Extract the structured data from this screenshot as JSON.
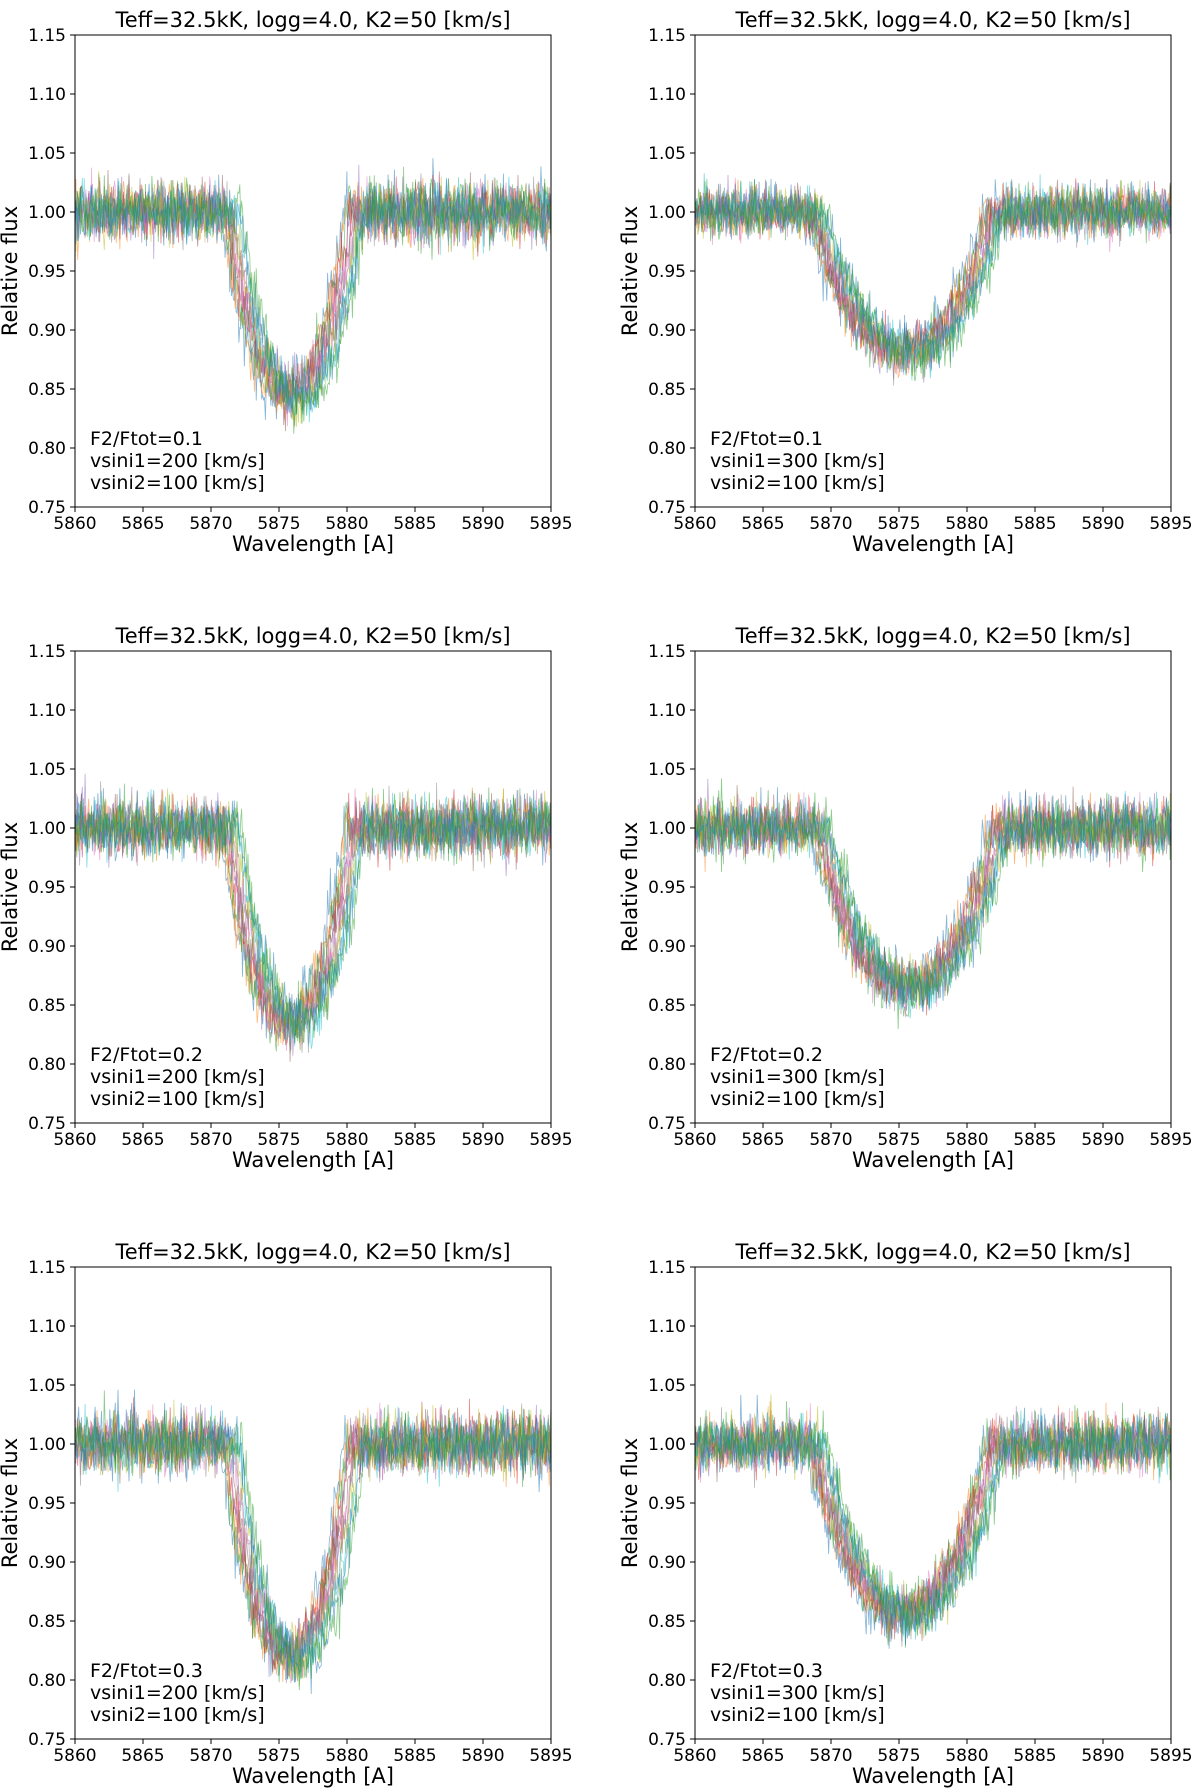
{
  "chart_data": [
    {
      "type": "line",
      "title": "Teff=32.5kK, logg=4.0, K2=50 [km/s]",
      "xlabel": "Wavelength [A]",
      "ylabel": "Relative flux",
      "xlim": [
        5860,
        5895
      ],
      "ylim": [
        0.75,
        1.15
      ],
      "xticks": [
        "5860",
        "5865",
        "5870",
        "5875",
        "5880",
        "5885",
        "5890",
        "5895"
      ],
      "yticks": [
        "0.75",
        "0.80",
        "0.85",
        "0.90",
        "0.95",
        "1.00",
        "1.05",
        "1.10",
        "1.15"
      ],
      "annotation": [
        "F2/Ftot=0.1",
        "vsini1=200 [km/s]",
        "vsini2=100 [km/s]"
      ],
      "grid": false,
      "line_profile": {
        "continuum": 1.0,
        "center": 5876.0,
        "min_flux": 0.845,
        "half_width": 4.5,
        "noise": 0.012
      },
      "series_count": 12
    },
    {
      "type": "line",
      "title": "Teff=32.5kK, logg=4.0, K2=50 [km/s]",
      "xlabel": "Wavelength [A]",
      "ylabel": "Relative flux",
      "xlim": [
        5860,
        5895
      ],
      "ylim": [
        0.75,
        1.15
      ],
      "xticks": [
        "5860",
        "5865",
        "5870",
        "5875",
        "5880",
        "5885",
        "5890",
        "5895"
      ],
      "yticks": [
        "0.75",
        "0.80",
        "0.85",
        "0.90",
        "0.95",
        "1.00",
        "1.05",
        "1.10",
        "1.15"
      ],
      "annotation": [
        "F2/Ftot=0.1",
        "vsini1=300 [km/s]",
        "vsini2=100 [km/s]"
      ],
      "grid": false,
      "line_profile": {
        "continuum": 1.0,
        "center": 5875.5,
        "min_flux": 0.88,
        "half_width": 6.5,
        "noise": 0.01
      },
      "series_count": 12
    },
    {
      "type": "line",
      "title": "Teff=32.5kK, logg=4.0, K2=50 [km/s]",
      "xlabel": "Wavelength [A]",
      "ylabel": "Relative flux",
      "xlim": [
        5860,
        5895
      ],
      "ylim": [
        0.75,
        1.15
      ],
      "xticks": [
        "5860",
        "5865",
        "5870",
        "5875",
        "5880",
        "5885",
        "5890",
        "5895"
      ],
      "yticks": [
        "0.75",
        "0.80",
        "0.85",
        "0.90",
        "0.95",
        "1.00",
        "1.05",
        "1.10",
        "1.15"
      ],
      "annotation": [
        "F2/Ftot=0.2",
        "vsini1=200 [km/s]",
        "vsini2=100 [km/s]"
      ],
      "grid": false,
      "line_profile": {
        "continuum": 1.0,
        "center": 5876.0,
        "min_flux": 0.835,
        "half_width": 4.5,
        "noise": 0.012
      },
      "series_count": 12
    },
    {
      "type": "line",
      "title": "Teff=32.5kK, logg=4.0, K2=50 [km/s]",
      "xlabel": "Wavelength [A]",
      "ylabel": "Relative flux",
      "xlim": [
        5860,
        5895
      ],
      "ylim": [
        0.75,
        1.15
      ],
      "xticks": [
        "5860",
        "5865",
        "5870",
        "5875",
        "5880",
        "5885",
        "5890",
        "5895"
      ],
      "yticks": [
        "0.75",
        "0.80",
        "0.85",
        "0.90",
        "0.95",
        "1.00",
        "1.05",
        "1.10",
        "1.15"
      ],
      "annotation": [
        "F2/Ftot=0.2",
        "vsini1=300 [km/s]",
        "vsini2=100 [km/s]"
      ],
      "grid": false,
      "line_profile": {
        "continuum": 1.0,
        "center": 5875.8,
        "min_flux": 0.865,
        "half_width": 6.5,
        "noise": 0.011
      },
      "series_count": 12
    },
    {
      "type": "line",
      "title": "Teff=32.5kK, logg=4.0, K2=50 [km/s]",
      "xlabel": "Wavelength [A]",
      "ylabel": "Relative flux",
      "xlim": [
        5860,
        5895
      ],
      "ylim": [
        0.75,
        1.15
      ],
      "xticks": [
        "5860",
        "5865",
        "5870",
        "5875",
        "5880",
        "5885",
        "5890",
        "5895"
      ],
      "yticks": [
        "0.75",
        "0.80",
        "0.85",
        "0.90",
        "0.95",
        "1.00",
        "1.05",
        "1.10",
        "1.15"
      ],
      "annotation": [
        "F2/Ftot=0.3",
        "vsini1=200 [km/s]",
        "vsini2=100 [km/s]"
      ],
      "grid": false,
      "line_profile": {
        "continuum": 1.0,
        "center": 5876.0,
        "min_flux": 0.82,
        "half_width": 4.5,
        "noise": 0.012
      },
      "series_count": 12
    },
    {
      "type": "line",
      "title": "Teff=32.5kK, logg=4.0, K2=50 [km/s]",
      "xlabel": "Wavelength [A]",
      "ylabel": "Relative flux",
      "xlim": [
        5860,
        5895
      ],
      "ylim": [
        0.75,
        1.15
      ],
      "xticks": [
        "5860",
        "5865",
        "5870",
        "5875",
        "5880",
        "5885",
        "5890",
        "5895"
      ],
      "yticks": [
        "0.75",
        "0.80",
        "0.85",
        "0.90",
        "0.95",
        "1.00",
        "1.05",
        "1.10",
        "1.15"
      ],
      "annotation": [
        "F2/Ftot=0.3",
        "vsini1=300 [km/s]",
        "vsini2=100 [km/s]"
      ],
      "grid": false,
      "line_profile": {
        "continuum": 1.0,
        "center": 5875.5,
        "min_flux": 0.855,
        "half_width": 6.5,
        "noise": 0.011
      },
      "series_count": 12
    }
  ],
  "series_colors": [
    "#1f77b4",
    "#ff7f0e",
    "#2ca02c",
    "#d62728",
    "#9467bd",
    "#8c564b",
    "#e377c2",
    "#7f7f7f",
    "#bcbd22",
    "#17becf",
    "#1f77b4",
    "#2ca02c"
  ]
}
